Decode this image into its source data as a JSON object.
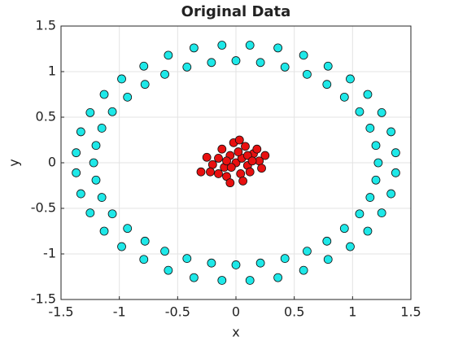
{
  "chart_data": {
    "type": "scatter",
    "title": "Original Data",
    "x_label": "x",
    "y_label": "y",
    "xlim": [
      -1.5,
      1.5
    ],
    "ylim": [
      -1.5,
      1.5
    ],
    "xticks": [
      -1.5,
      -1,
      -0.5,
      0,
      0.5,
      1,
      1.5
    ],
    "yticks": [
      -1.5,
      -1,
      -0.5,
      0,
      0.5,
      1,
      1.5
    ],
    "grid": true,
    "series": [
      {
        "color": "#1ee8e8",
        "x": [
          1.22,
          1.2,
          1.15,
          1.06,
          0.93,
          0.78,
          0.61,
          0.42,
          0.21,
          0,
          -0.21,
          -0.42,
          -0.61,
          -0.78,
          -0.93,
          -1.06,
          -1.15,
          -1.2,
          -1.22,
          -1.2,
          -1.15,
          -1.06,
          -0.93,
          -0.78,
          -0.61,
          -0.42,
          -0.21,
          0,
          0.21,
          0.42,
          0.61,
          0.78,
          0.93,
          1.06,
          1.15,
          1.2,
          1.37,
          1.33,
          1.25,
          1.13,
          0.98,
          0.79,
          0.58,
          0.36,
          0.12,
          -0.12,
          -0.36,
          -0.58,
          -0.79,
          -0.98,
          -1.13,
          -1.25,
          -1.33,
          -1.37,
          -1.37,
          -1.33,
          -1.25,
          -1.13,
          -0.98,
          -0.79,
          -0.58,
          -0.36,
          -0.12,
          0.12,
          0.36,
          0.58,
          0.79,
          0.98,
          1.13,
          1.25,
          1.33,
          1.37
        ],
        "y": [
          0,
          0.19,
          0.38,
          0.56,
          0.72,
          0.86,
          0.97,
          1.05,
          1.1,
          1.12,
          1.1,
          1.05,
          0.97,
          0.86,
          0.72,
          0.56,
          0.38,
          0.19,
          0,
          -0.19,
          -0.38,
          -0.56,
          -0.72,
          -0.86,
          -0.97,
          -1.05,
          -1.1,
          -1.12,
          -1.1,
          -1.05,
          -0.97,
          -0.86,
          -0.72,
          -0.56,
          -0.38,
          -0.19,
          0.11,
          0.34,
          0.55,
          0.75,
          0.92,
          1.06,
          1.18,
          1.26,
          1.29,
          1.29,
          1.26,
          1.18,
          1.06,
          0.92,
          0.75,
          0.55,
          0.34,
          0.11,
          -0.11,
          -0.34,
          -0.55,
          -0.75,
          -0.92,
          -1.06,
          -1.18,
          -1.26,
          -1.29,
          -1.29,
          -1.26,
          -1.18,
          -1.06,
          -0.92,
          -0.75,
          -0.55,
          -0.34,
          -0.11
        ]
      },
      {
        "color": "#e81010",
        "x": [
          0,
          0.05,
          -0.05,
          0.1,
          -0.1,
          0.15,
          -0.15,
          0.2,
          -0.2,
          0.08,
          -0.02,
          0.04,
          -0.08,
          0.12,
          -0.15,
          0.22,
          -0.25,
          0.18,
          -0.12,
          0.02,
          -0.04,
          0.06,
          -0.05,
          0.25,
          -0.22,
          0.1,
          -0.08,
          0.14,
          -0.3,
          0.03
        ],
        "y": [
          0,
          0.05,
          0.08,
          -0.03,
          -0.05,
          0.1,
          0.05,
          0.02,
          -0.02,
          0.18,
          0.22,
          -0.12,
          -0.15,
          -0.1,
          -0.12,
          -0.06,
          0.06,
          0.15,
          0.15,
          0.12,
          -0.05,
          -0.2,
          -0.22,
          0.08,
          -0.1,
          0.08,
          0.02,
          0.02,
          -0.1,
          0.25
        ]
      }
    ]
  }
}
